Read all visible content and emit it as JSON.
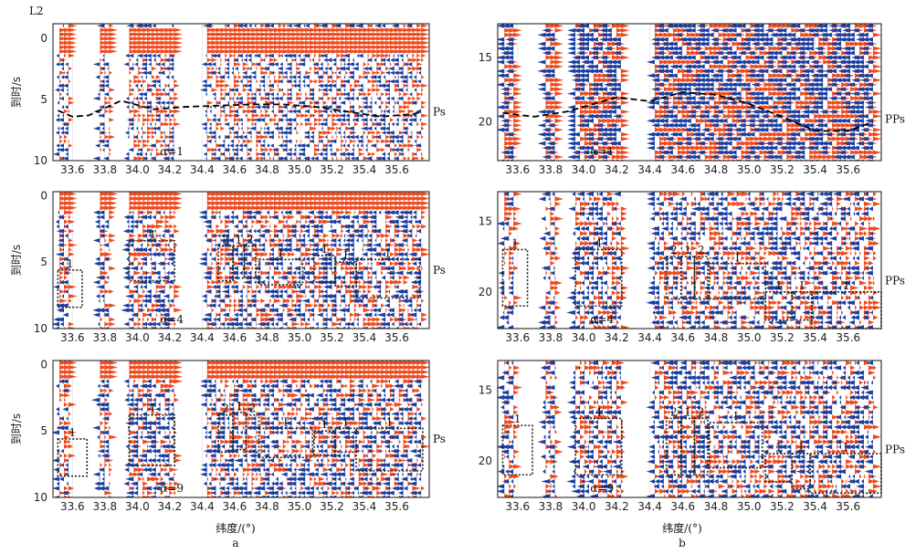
{
  "chart_data": {
    "type": "heatmap",
    "colors": {
      "positive": "#ef4a1e",
      "negative": "#1a3fa0",
      "frame": "#111111",
      "box": "#222222",
      "grid": "#dddddd"
    },
    "xlabel": "纬度/(°)",
    "ylabel": "到时/s",
    "x_ticks": [
      "33.6",
      "33.8",
      "34.0",
      "34.2",
      "34.4",
      "34.6",
      "34.8",
      "35.0",
      "35.2",
      "35.4",
      "35.6"
    ],
    "xlim": [
      33.48,
      35.8
    ],
    "column_a": "a",
    "column_b": "b",
    "station_label": "L2",
    "panels": [
      {
        "id": "a1",
        "phase": "Ps",
        "alpha": "α=1",
        "y_ticks": [
          "0",
          "5",
          "10"
        ],
        "ylim": [
          -1.2,
          10
        ],
        "curve": true,
        "boxes": []
      },
      {
        "id": "a2",
        "phase": "Ps",
        "alpha": "α=4",
        "y_ticks": [
          "0",
          "5",
          "10"
        ],
        "ylim": [
          -0.3,
          10
        ],
        "curve": false,
        "boxes": [
          {
            "label": "1",
            "x": [
              33.51,
              33.66
            ],
            "t": [
              5.6,
              8.4
            ]
          },
          {
            "label": "4",
            "x": [
              33.95,
              34.23
            ],
            "t": [
              3.4,
              6.4
            ]
          },
          {
            "label": "2",
            "x": [
              34.5,
              34.59
            ],
            "t": [
              3.8,
              6.4
            ]
          },
          {
            "label": "1",
            "x": [
              34.59,
              34.66
            ],
            "t": [
              3.8,
              6.2
            ]
          },
          {
            "label": "2",
            "x": [
              34.66,
              34.73
            ],
            "t": [
              3.8,
              6.2
            ]
          },
          {
            "label": "I",
            "x": [
              34.75,
              35.02
            ],
            "t": [
              4.8,
              6.7
            ]
          },
          {
            "label": "1",
            "x": [
              35.09,
              35.22
            ],
            "t": [
              4.5,
              6.5
            ]
          },
          {
            "label": "I",
            "x": [
              35.22,
              35.35
            ],
            "t": [
              5.0,
              6.8
            ]
          },
          {
            "label": "1",
            "x": [
              35.35,
              35.74
            ],
            "t": [
              4.8,
              7.7
            ]
          }
        ]
      },
      {
        "id": "a3",
        "phase": "Ps",
        "alpha": "α=9",
        "y_ticks": [
          "0",
          "5",
          "10"
        ],
        "ylim": [
          -0.3,
          10
        ],
        "curve": false,
        "boxes": [
          {
            "label": "1",
            "x": [
              33.51,
              33.69
            ],
            "t": [
              5.6,
              8.4
            ]
          },
          {
            "label": "4",
            "x": [
              33.95,
              34.23
            ],
            "t": [
              3.8,
              7.6
            ]
          },
          {
            "label": "2",
            "x": [
              34.5,
              34.59
            ],
            "t": [
              3.8,
              6.6
            ]
          },
          {
            "label": "1",
            "x": [
              34.59,
              34.67
            ],
            "t": [
              3.6,
              6.4
            ]
          },
          {
            "label": "2",
            "x": [
              34.67,
              34.75
            ],
            "t": [
              3.8,
              6.6
            ]
          },
          {
            "label": "I",
            "x": [
              34.75,
              35.08
            ],
            "t": [
              4.8,
              7.0
            ]
          },
          {
            "label": "1",
            "x": [
              35.09,
              35.22
            ],
            "t": [
              5.0,
              6.8
            ]
          },
          {
            "label": "I",
            "x": [
              35.22,
              35.35
            ],
            "t": [
              4.8,
              6.6
            ]
          },
          {
            "label": "1",
            "x": [
              35.35,
              35.76
            ],
            "t": [
              4.8,
              8.0
            ]
          }
        ]
      },
      {
        "id": "b1",
        "phase": "PPs",
        "alpha": "α=1",
        "y_ticks": [
          "15",
          "20"
        ],
        "ylim": [
          12.4,
          23.0
        ],
        "curve": true,
        "boxes": []
      },
      {
        "id": "b2",
        "phase": "PPs",
        "alpha": "α=4",
        "y_ticks": [
          "15",
          "20"
        ],
        "ylim": [
          12.9,
          22.6
        ],
        "curve": false,
        "boxes": [
          {
            "label": "1",
            "x": [
              33.51,
              33.66
            ],
            "t": [
              17.0,
              21.0
            ]
          },
          {
            "label": "4",
            "x": [
              33.95,
              34.23
            ],
            "t": [
              17.0,
              21.0
            ]
          },
          {
            "label": "2",
            "x": [
              34.5,
              34.59
            ],
            "t": [
              17.5,
              20.5
            ]
          },
          {
            "label": "1",
            "x": [
              34.59,
              34.67
            ],
            "t": [
              17.5,
              20.5
            ]
          },
          {
            "label": "2",
            "x": [
              34.67,
              34.75
            ],
            "t": [
              17.5,
              20.5
            ]
          },
          {
            "label": "I",
            "x": [
              34.76,
              35.1
            ],
            "t": [
              18.0,
              20.5
            ]
          },
          {
            "label": "1",
            "x": [
              35.1,
              35.26
            ],
            "t": [
              20.0,
              22.0
            ]
          },
          {
            "label": "I",
            "x": [
              35.26,
              35.38
            ],
            "t": [
              20.0,
              22.0
            ]
          },
          {
            "label": "1",
            "x": [
              35.38,
              35.8
            ],
            "t": [
              20.0,
              22.6
            ]
          }
        ]
      },
      {
        "id": "b3",
        "phase": "PPs",
        "alpha": "α=9",
        "y_ticks": [
          "15",
          "20"
        ],
        "ylim": [
          12.9,
          22.6
        ],
        "curve": false,
        "boxes": [
          {
            "label": "1",
            "x": [
              33.51,
              33.69
            ],
            "t": [
              17.5,
              21.0
            ]
          },
          {
            "label": "4",
            "x": [
              33.95,
              34.23
            ],
            "t": [
              17.0,
              21.0
            ]
          },
          {
            "label": "2",
            "x": [
              34.5,
              34.59
            ],
            "t": [
              17.0,
              21.0
            ]
          },
          {
            "label": "1",
            "x": [
              34.59,
              34.67
            ],
            "t": [
              17.0,
              21.0
            ]
          },
          {
            "label": "2",
            "x": [
              34.67,
              34.75
            ],
            "t": [
              17.0,
              21.0
            ]
          },
          {
            "label": "I",
            "x": [
              34.76,
              35.08
            ],
            "t": [
              17.3,
              20.5
            ]
          },
          {
            "label": "1",
            "x": [
              35.1,
              35.26
            ],
            "t": [
              19.5,
              21.5
            ]
          },
          {
            "label": "I",
            "x": [
              35.26,
              35.37
            ],
            "t": [
              19.5,
              22.0
            ]
          },
          {
            "label": "1",
            "x": [
              35.37,
              35.8
            ],
            "t": [
              19.5,
              22.3
            ]
          }
        ]
      }
    ],
    "curve_a": {
      "x": [
        33.51,
        33.6,
        33.7,
        33.9,
        34.1,
        34.3,
        34.5,
        34.7,
        34.9,
        35.1,
        35.3,
        35.5,
        35.7,
        35.75
      ],
      "t": [
        5.9,
        6.4,
        6.3,
        5.1,
        5.8,
        5.6,
        5.5,
        5.4,
        5.4,
        5.6,
        6.0,
        6.4,
        6.2,
        6.0
      ]
    },
    "curve_b": {
      "x": [
        33.51,
        33.7,
        33.9,
        34.2,
        34.4,
        34.6,
        34.8,
        35.0,
        35.2,
        35.4,
        35.6,
        35.75
      ],
      "t": [
        19.3,
        19.6,
        19.2,
        18.1,
        18.4,
        17.7,
        17.9,
        18.6,
        19.6,
        20.7,
        20.7,
        20.0
      ]
    }
  }
}
